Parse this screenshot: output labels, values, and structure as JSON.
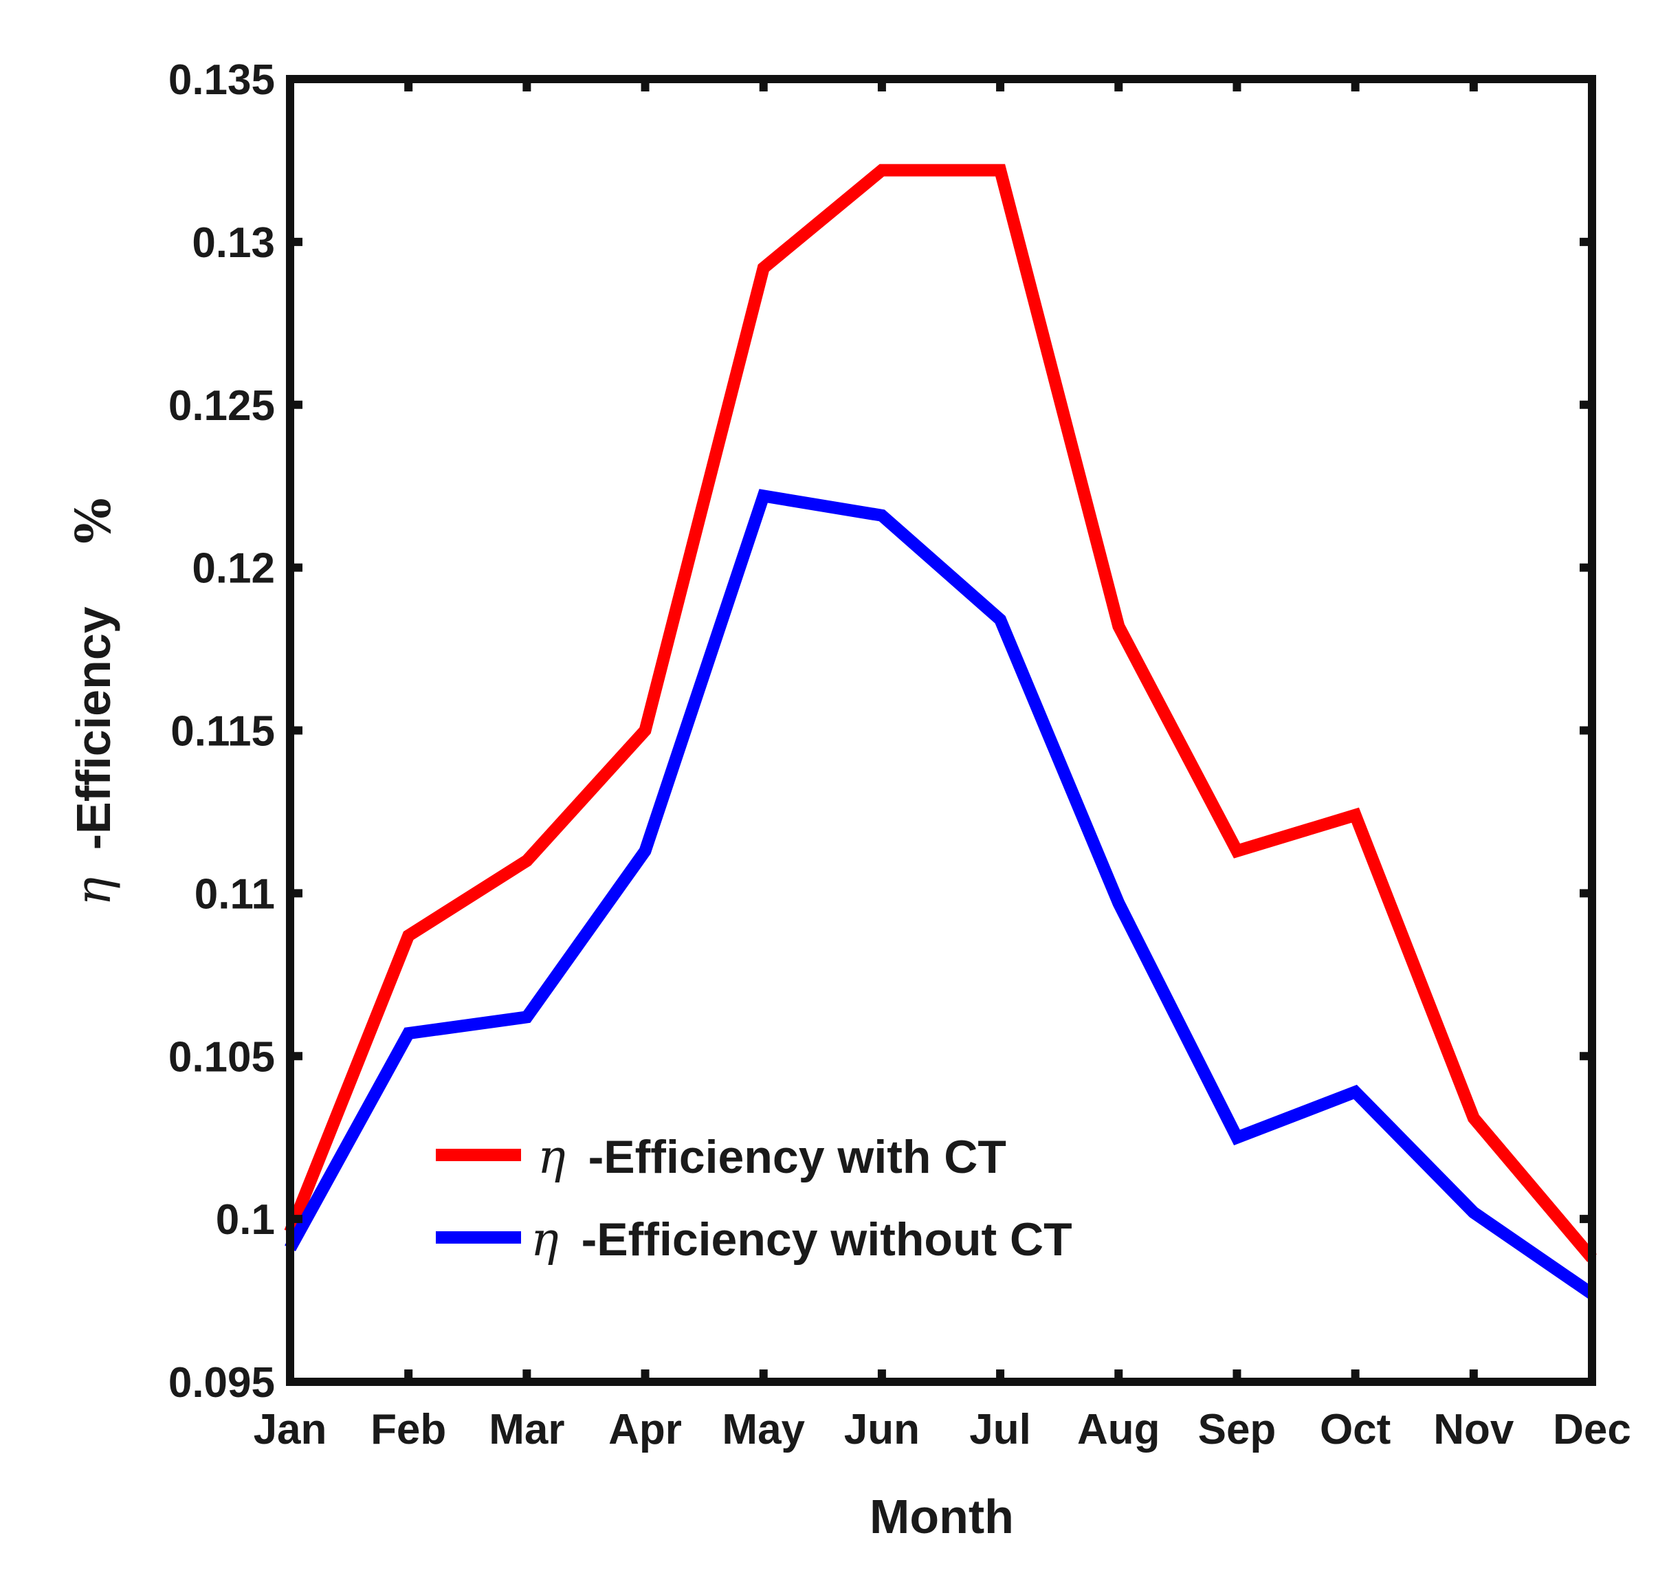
{
  "chart_data": {
    "type": "line",
    "categories": [
      "Jan",
      "Feb",
      "Mar",
      "Apr",
      "May",
      "Jun",
      "Jul",
      "Aug",
      "Sep",
      "Oct",
      "Nov",
      "Dec"
    ],
    "series": [
      {
        "name": "-Efficiency with CT",
        "symbol": "η",
        "color": "#ff0000",
        "values": [
          0.0996,
          0.1087,
          0.111,
          0.115,
          0.1292,
          0.1322,
          0.1322,
          0.1182,
          0.1113,
          0.1124,
          0.1031,
          0.0988
        ]
      },
      {
        "name": "-Efficiency without CT",
        "symbol": "η",
        "color": "#0000ff",
        "values": [
          0.0991,
          0.1057,
          0.1062,
          0.1113,
          0.1222,
          0.1216,
          0.1184,
          0.1097,
          0.1025,
          0.1039,
          0.1002,
          0.0977
        ]
      }
    ],
    "xlabel": "Month",
    "ylabel": {
      "symbol": "η",
      "text": "-Efficiency",
      "unit": "%"
    },
    "ylim": [
      0.095,
      0.135
    ],
    "yticks": [
      0.095,
      0.1,
      0.105,
      0.11,
      0.115,
      0.12,
      0.125,
      0.13,
      0.135
    ],
    "ytick_labels": [
      "0.095",
      "0.1",
      "0.105",
      "0.11",
      "0.115",
      "0.12",
      "0.125",
      "0.13",
      "0.135"
    ],
    "grid": false,
    "legend_position": "bottom-center"
  }
}
